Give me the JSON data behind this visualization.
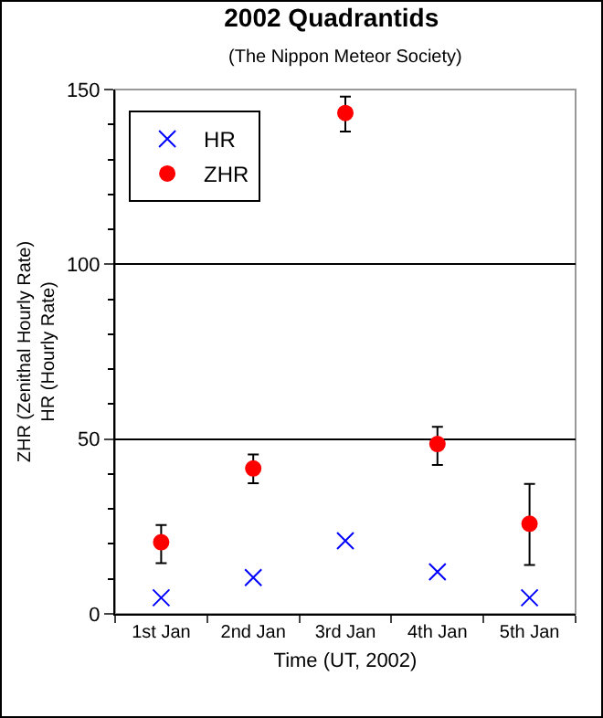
{
  "chart_data": {
    "type": "scatter",
    "title": "2002 Quadrantids",
    "subtitle": "(The Nippon Meteor Society)",
    "xlabel": "Time (UT, 2002)",
    "ylabel": "ZHR (Zenithal Hourly Rate)\nHR (Hourly Rate)",
    "categories": [
      "1st Jan",
      "2nd Jan",
      "3rd Jan",
      "4th Jan",
      "5th Jan"
    ],
    "series": [
      {
        "name": "HR",
        "color": "#0000ff",
        "marker": "cross",
        "values": [
          4.6,
          10.4,
          20.9,
          12,
          4.6
        ]
      },
      {
        "name": "ZHR",
        "color": "#ff0000",
        "marker": "circle",
        "values": [
          20.5,
          41.6,
          143.3,
          48.6,
          25.8
        ],
        "errors": [
          [
            14.5,
            25.4
          ],
          [
            37.4,
            45.6
          ],
          [
            138,
            148
          ],
          [
            42.6,
            53.5
          ],
          [
            14,
            37.2
          ]
        ]
      }
    ],
    "ylim": [
      0,
      150
    ],
    "yticks": [
      0,
      50,
      100,
      150
    ],
    "grid": "y",
    "legend": "top left"
  }
}
